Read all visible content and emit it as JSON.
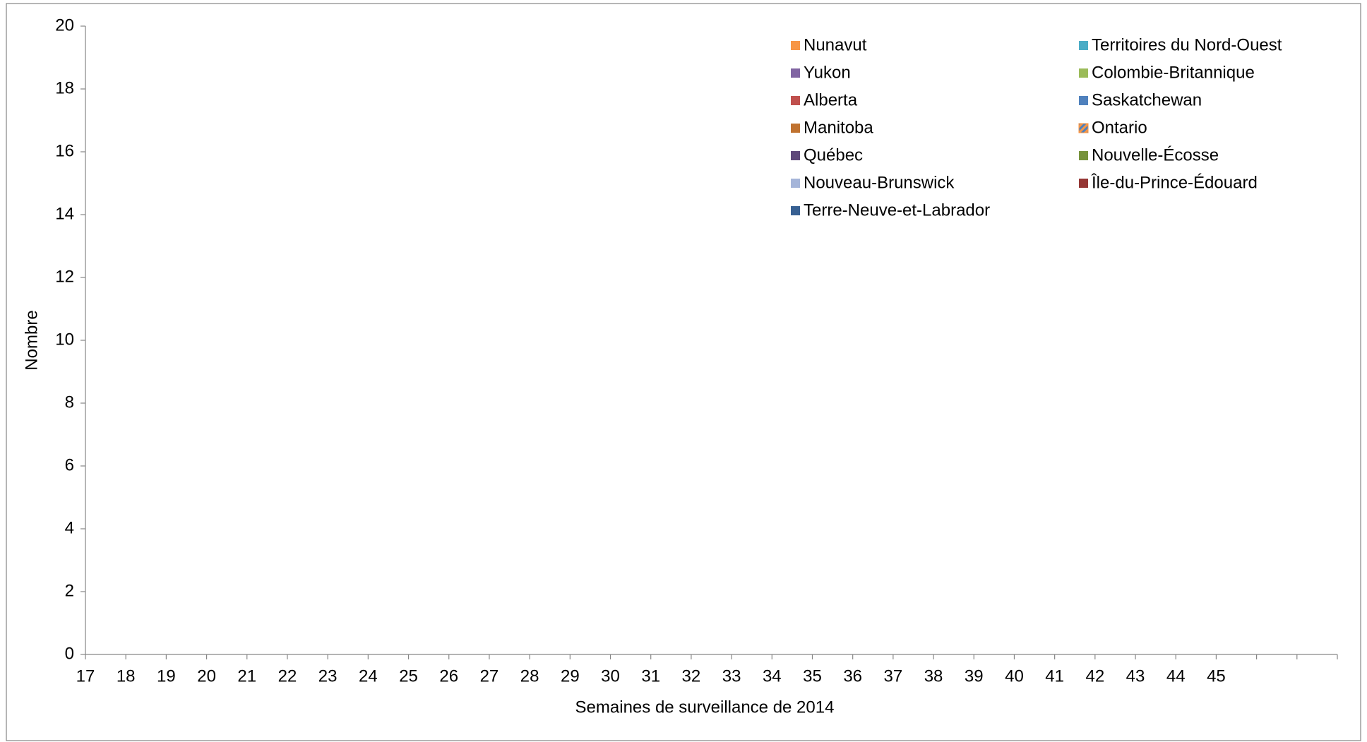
{
  "chart_data": {
    "type": "stacked-bar",
    "x_label": "Semaines de surveillance de 2014",
    "y_label": "Nombre",
    "categories": [
      "17",
      "18",
      "19",
      "20",
      "21",
      "22",
      "23",
      "24",
      "25",
      "26",
      "27",
      "28",
      "29",
      "30",
      "31",
      "32",
      "33",
      "34",
      "35",
      "36",
      "37",
      "38",
      "39",
      "40",
      "41",
      "42",
      "43",
      "44",
      "45",
      null,
      null,
      null
    ],
    "ylim": [
      0,
      20
    ],
    "yticks": [
      0,
      2,
      4,
      6,
      8,
      10,
      12,
      14,
      16,
      18,
      20
    ],
    "legend": "top-right",
    "series": [
      {
        "name": "Nunavut",
        "color": "#f79646",
        "values": [
          0,
          0,
          0,
          0,
          0,
          0,
          0,
          0,
          0,
          0,
          0,
          0,
          0,
          0,
          0,
          0,
          0,
          0,
          0,
          0,
          0,
          0,
          0,
          0,
          0,
          0,
          0,
          0,
          0,
          null,
          null,
          null
        ]
      },
      {
        "name": "Territoires du Nord-Ouest",
        "color": "#4bacc6",
        "values": [
          0,
          0,
          0,
          0,
          0,
          0,
          0,
          0,
          0,
          0,
          0,
          0,
          0,
          0,
          0,
          0,
          0,
          0,
          0,
          0,
          0,
          0,
          0,
          0,
          0,
          0,
          0,
          0,
          0,
          null,
          null,
          null
        ]
      },
      {
        "name": "Yukon",
        "color": "#8064a2",
        "values": [
          0,
          0,
          0,
          0,
          0,
          0,
          0,
          0,
          0,
          0,
          0,
          0,
          0,
          0,
          0,
          0,
          0,
          0,
          0,
          0,
          0,
          0,
          0,
          0,
          0,
          0,
          0,
          0,
          0,
          null,
          null,
          null
        ]
      },
      {
        "name": "Colombie-Britannique",
        "color": "#9bbb59",
        "values": [
          0,
          0,
          0,
          0,
          0,
          0,
          0,
          0,
          0,
          0,
          0,
          0,
          0,
          0,
          0,
          0,
          0,
          0,
          0,
          0,
          0,
          0,
          0,
          0,
          0,
          0,
          0,
          0,
          0,
          null,
          null,
          null
        ]
      },
      {
        "name": "Alberta",
        "color": "#c0504d",
        "values": [
          0,
          0,
          0,
          0,
          0,
          0,
          0,
          0,
          0,
          0,
          0,
          0,
          0,
          0,
          0,
          0,
          0,
          0,
          0,
          0,
          0,
          0,
          0,
          0,
          0,
          0,
          0,
          0,
          0,
          null,
          null,
          null
        ]
      },
      {
        "name": "Saskatchewan",
        "color": "#4f81bd",
        "values": [
          0,
          0,
          0,
          0,
          0,
          0,
          0,
          0,
          0,
          0,
          0,
          0,
          0,
          0,
          0,
          0,
          0,
          0,
          0,
          0,
          0,
          0,
          0,
          0,
          0,
          0,
          0,
          0,
          0,
          null,
          null,
          null
        ]
      },
      {
        "name": "Manitoba",
        "color": "#c0722f",
        "values": [
          0,
          0,
          0,
          0,
          0,
          0,
          0,
          0,
          0,
          0,
          0,
          0,
          0,
          0,
          0,
          0,
          0,
          0,
          0,
          0,
          0,
          0,
          0,
          0,
          0,
          0,
          0,
          0,
          0,
          null,
          null,
          null
        ]
      },
      {
        "name": "Ontario",
        "color": "#f79646",
        "pattern": "hatch",
        "values": [
          0,
          0,
          0,
          0,
          0,
          0,
          0,
          0,
          0,
          0,
          0,
          0,
          0,
          0,
          0,
          0,
          0,
          0,
          0,
          0,
          0,
          0,
          0,
          0,
          0,
          0,
          0,
          0,
          0,
          null,
          null,
          null
        ]
      },
      {
        "name": "Québec",
        "color": "#5f497a",
        "values": [
          0,
          0,
          0,
          0,
          0,
          0,
          0,
          0,
          0,
          0,
          0,
          0,
          0,
          0,
          0,
          0,
          0,
          0,
          0,
          0,
          0,
          0,
          0,
          0,
          0,
          0,
          0,
          0,
          0,
          null,
          null,
          null
        ]
      },
      {
        "name": "Nouvelle-Écosse",
        "color": "#77933c",
        "values": [
          0,
          0,
          0,
          0,
          0,
          0,
          0,
          0,
          0,
          0,
          0,
          0,
          0,
          0,
          0,
          0,
          0,
          0,
          0,
          0,
          0,
          0,
          0,
          0,
          0,
          0,
          0,
          0,
          0,
          null,
          null,
          null
        ]
      },
      {
        "name": "Nouveau-Brunswick",
        "color": "#a5b5d9",
        "values": [
          0,
          0,
          0,
          0,
          0,
          0,
          0,
          0,
          0,
          0,
          0,
          0,
          0,
          0,
          0,
          0,
          0,
          0,
          0,
          0,
          0,
          0,
          0,
          0,
          0,
          0,
          0,
          0,
          0,
          null,
          null,
          null
        ]
      },
      {
        "name": "Île-du-Prince-Édouard",
        "color": "#953735",
        "values": [
          0,
          0,
          0,
          0,
          0,
          0,
          0,
          0,
          0,
          0,
          0,
          0,
          0,
          0,
          0,
          0,
          0,
          0,
          0,
          0,
          0,
          0,
          0,
          0,
          0,
          0,
          0,
          0,
          0,
          null,
          null,
          null
        ]
      },
      {
        "name": "Terre-Neuve-et-Labrador",
        "color": "#376092",
        "values": [
          0,
          0,
          0,
          0,
          0,
          0,
          0,
          0,
          0,
          0,
          0,
          0,
          0,
          0,
          0,
          0,
          0,
          0,
          0,
          0,
          0,
          0,
          0,
          0,
          0,
          0,
          0,
          0,
          0,
          null,
          null,
          null
        ]
      }
    ]
  }
}
